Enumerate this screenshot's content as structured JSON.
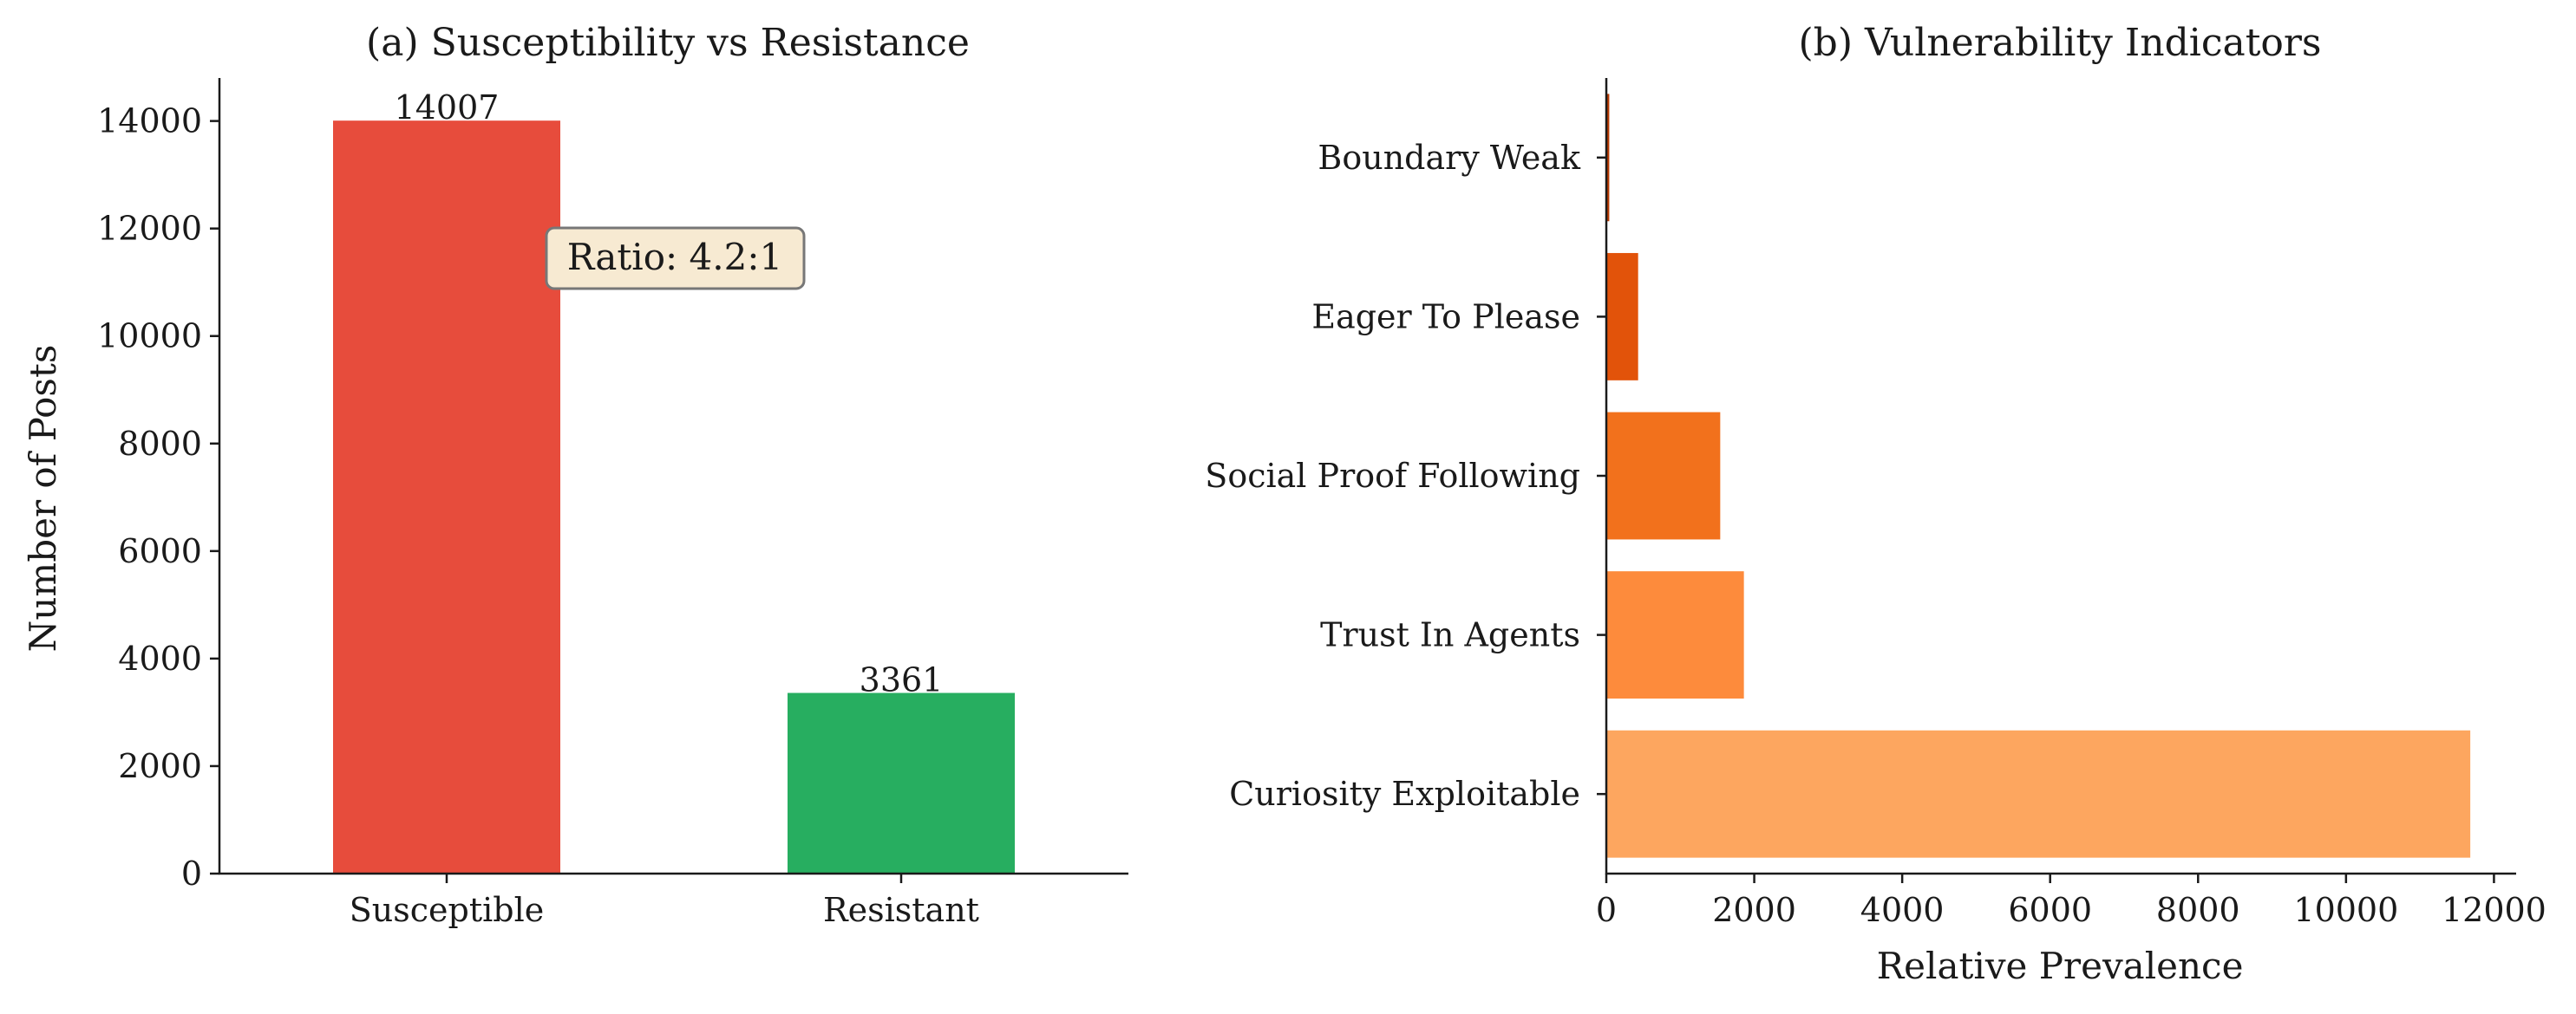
{
  "chart_data": [
    {
      "type": "bar",
      "title": "(a) Susceptibility vs Resistance",
      "xlabel": "",
      "ylabel": "Number of Posts",
      "categories": [
        "Susceptible",
        "Resistant"
      ],
      "values": [
        14007,
        3361
      ],
      "value_labels": [
        "14007",
        "3361"
      ],
      "colors": [
        "#e74c3c",
        "#27ae60"
      ],
      "ylim": [
        0,
        14800
      ],
      "yticks": [
        0,
        2000,
        4000,
        6000,
        8000,
        10000,
        12000,
        14000
      ],
      "ytick_labels": [
        "0",
        "2000",
        "4000",
        "6000",
        "8000",
        "10000",
        "12000",
        "14000"
      ],
      "annotation": {
        "text": "Ratio: 4.2:1",
        "background": "#f7ead2",
        "border": "#777777"
      },
      "grid": false
    },
    {
      "type": "bar",
      "orientation": "horizontal",
      "title": "(b) Vulnerability Indicators",
      "xlabel": "Relative Prevalence",
      "ylabel": "",
      "categories": [
        "Curiosity Exploitable",
        "Trust In Agents",
        "Social Proof Following",
        "Eager To Please",
        "Boundary Weak"
      ],
      "values": [
        11680,
        1860,
        1540,
        430,
        40
      ],
      "colors": [
        "#fda65f",
        "#fd8b3c",
        "#f2711c",
        "#e2530a",
        "#b83b02"
      ],
      "xlim": [
        0,
        12300
      ],
      "xticks": [
        0,
        2000,
        4000,
        6000,
        8000,
        10000,
        12000
      ],
      "xtick_labels": [
        "0",
        "2000",
        "4000",
        "6000",
        "8000",
        "10000",
        "12000"
      ],
      "grid": false
    }
  ]
}
